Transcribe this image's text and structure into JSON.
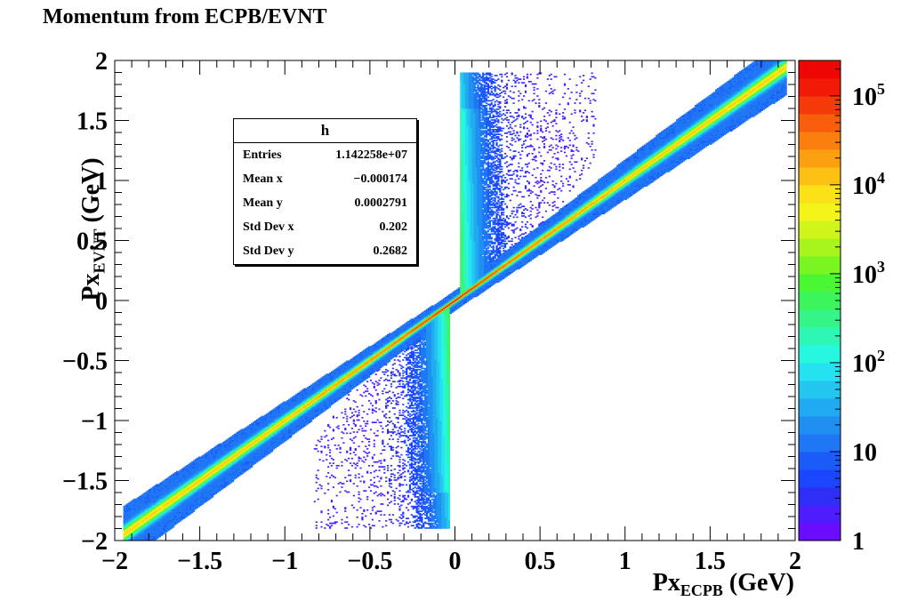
{
  "page": {
    "title": "Momentum from ECPB/EVNT"
  },
  "chart_data": {
    "type": "heatmap",
    "title": "Momentum from ECPB/EVNT",
    "xlabel": {
      "base": "Px",
      "sub": "ECPB",
      "unit": " (GeV)"
    },
    "ylabel": {
      "base": "Px",
      "sub": "EVNT",
      "unit": " (GeV)"
    },
    "xlim": [
      -2,
      2
    ],
    "ylim": [
      -2,
      2
    ],
    "x_ticks": [
      "−2",
      "−1.5",
      "−1",
      "−0.5",
      "0",
      "0.5",
      "1",
      "1.5",
      "2"
    ],
    "y_ticks": [
      "2",
      "1.5",
      "1",
      "0.5",
      "0",
      "−0.5",
      "−1",
      "−1.5",
      "−2"
    ],
    "z_scale": "log",
    "z_range": [
      1,
      250000
    ],
    "z_ticks": [
      {
        "value": 1,
        "label": "1"
      },
      {
        "value": 10,
        "label": "10"
      },
      {
        "value": 100,
        "label": "10",
        "sup": "2"
      },
      {
        "value": 1000,
        "label": "10",
        "sup": "3"
      },
      {
        "value": 10000,
        "label": "10",
        "sup": "4"
      },
      {
        "value": 100000,
        "label": "10",
        "sup": "5"
      }
    ],
    "palette": [
      "#6a0dff",
      "#4d1dff",
      "#2f2ef6",
      "#1a46ff",
      "#1b5cf8",
      "#1f77f5",
      "#1f90f2",
      "#20aaf1",
      "#23c6ef",
      "#25e2f0",
      "#26f7e1",
      "#2ef7b5",
      "#35f588",
      "#3cf55c",
      "#4af733",
      "#7bf522",
      "#a7f51d",
      "#d0f51a",
      "#f3f41a",
      "#fbe117",
      "#fdc114",
      "#fca011",
      "#fb7f0e",
      "#f95e0c",
      "#f53a09",
      "#f11a06",
      "#ee0604"
    ],
    "description_regions": [
      {
        "name": "diagonal",
        "x": [
          -1.9,
          1.7
        ],
        "y": [
          -1.9,
          1.7
        ]
      },
      {
        "name": "upper-band",
        "x": [
          0.03,
          0.9
        ],
        "y": [
          0.02,
          1.9
        ]
      },
      {
        "name": "lower-band",
        "x": [
          -0.9,
          -0.03
        ],
        "y": [
          -1.9,
          -0.02
        ]
      }
    ]
  },
  "stats": {
    "name": "h",
    "rows": [
      {
        "label": "Entries",
        "value": "1.142258e+07"
      },
      {
        "label": "Mean x",
        "value": "−0.000174"
      },
      {
        "label": "Mean y",
        "value": "0.0002791"
      },
      {
        "label": "Std Dev x",
        "value": "0.202"
      },
      {
        "label": "Std Dev y",
        "value": "0.2682"
      }
    ]
  }
}
